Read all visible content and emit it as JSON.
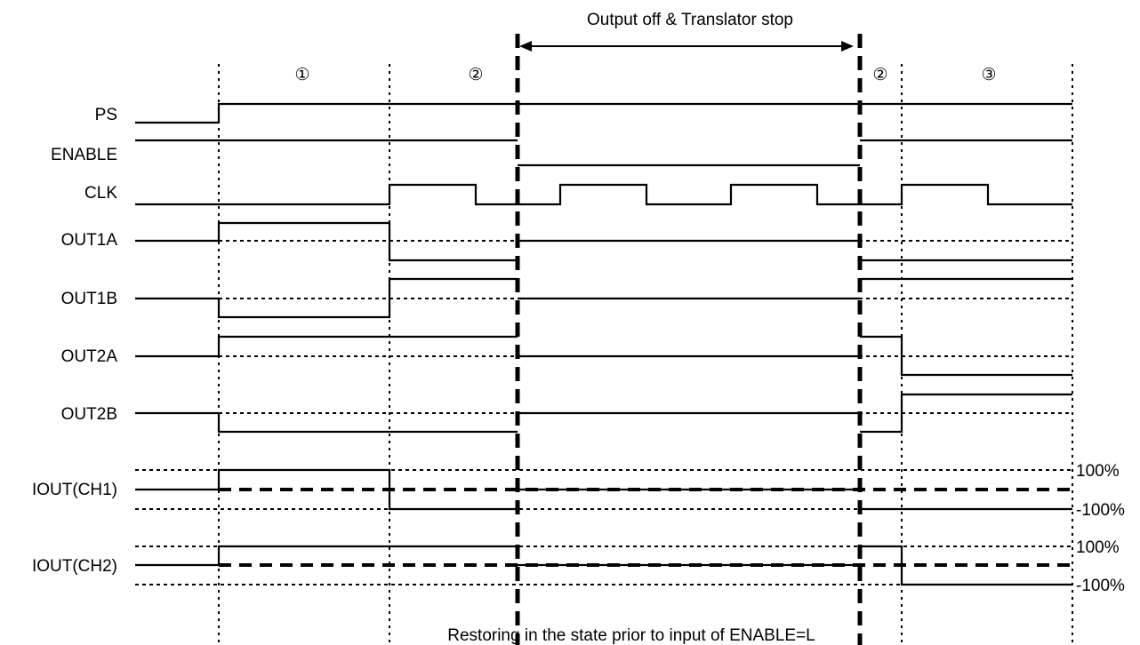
{
  "header": {
    "span_label": "Output off & Translator stop",
    "phase_labels": [
      "①",
      "②",
      "②",
      "③"
    ]
  },
  "signals": {
    "ps": "PS",
    "enable": "ENABLE",
    "clk": "CLK",
    "out1a": "OUT1A",
    "out1b": "OUT1B",
    "out2a": "OUT2A",
    "out2b": "OUT2B",
    "iout_ch1": "IOUT(CH1)",
    "iout_ch2": "IOUT(CH2)"
  },
  "levels": {
    "ch1_pos": "100%",
    "ch1_neg": "-100%",
    "ch2_pos": "100%",
    "ch2_neg": "-100%"
  },
  "footer": {
    "caption": "Restoring in the state prior to input of ENABLE=L"
  }
}
